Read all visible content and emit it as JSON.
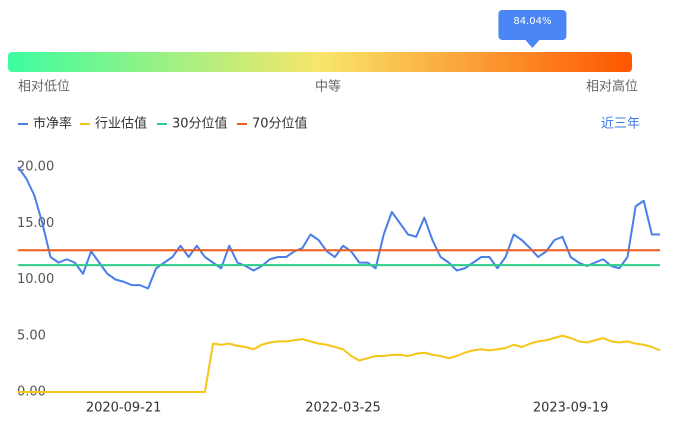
{
  "chart_data": {
    "type": "line",
    "percentile": 84.04,
    "percentile_label": "84.04%",
    "scale_labels": [
      "相对低位",
      "中等",
      "相对高位"
    ],
    "range_option": "近三年",
    "categories": [
      null,
      null,
      null,
      null,
      null,
      null,
      null,
      null,
      null,
      null,
      null,
      null,
      null,
      "2020-09-21",
      null,
      null,
      null,
      null,
      null,
      null,
      null,
      null,
      null,
      null,
      null,
      null,
      null,
      null,
      null,
      null,
      null,
      null,
      null,
      null,
      null,
      null,
      null,
      null,
      null,
      null,
      "2022-03-25",
      null,
      null,
      null,
      null,
      null,
      null,
      null,
      null,
      null,
      null,
      null,
      null,
      null,
      null,
      null,
      null,
      null,
      null,
      null,
      null,
      null,
      null,
      null,
      null,
      null,
      null,
      null,
      "2023-09-19",
      null,
      null,
      null,
      null,
      null,
      null,
      null,
      null,
      null,
      null,
      null
    ],
    "series": [
      {
        "name": "市净率",
        "color": "#4a7ee8",
        "values": [
          20,
          19,
          17.5,
          15,
          12,
          11.5,
          11.8,
          11.5,
          10.5,
          12.5,
          11.5,
          10.5,
          10,
          9.8,
          9.5,
          9.5,
          9.2,
          11,
          11.5,
          12,
          13,
          12,
          13,
          12,
          11.5,
          11,
          13,
          11.5,
          11.2,
          10.8,
          11.2,
          11.8,
          12,
          12,
          12.5,
          12.8,
          14,
          13.5,
          12.5,
          12,
          13,
          12.5,
          11.5,
          11.5,
          11,
          14,
          16,
          15,
          14,
          13.8,
          15.5,
          13.5,
          12,
          11.5,
          10.8,
          11,
          11.5,
          12,
          12,
          11,
          12,
          14,
          13.5,
          12.8,
          12,
          12.5,
          13.5,
          13.8,
          12,
          11.5,
          11.2,
          11.5,
          11.8,
          11.2,
          11,
          12,
          16.5,
          17,
          14,
          14
        ]
      },
      {
        "name": "行业估值",
        "color": "#f5c518",
        "values": [
          0,
          0,
          0,
          0,
          0,
          0,
          0,
          0,
          0,
          0,
          0,
          0,
          0,
          0,
          0,
          0,
          0,
          0,
          0,
          0,
          0,
          0,
          0,
          0,
          4.3,
          4.2,
          4.3,
          4.1,
          4.0,
          3.8,
          4.2,
          4.4,
          4.5,
          4.5,
          4.6,
          4.7,
          4.5,
          4.3,
          4.2,
          4.0,
          3.8,
          3.2,
          2.8,
          3.0,
          3.2,
          3.2,
          3.3,
          3.3,
          3.2,
          3.4,
          3.5,
          3.3,
          3.2,
          3.0,
          3.2,
          3.5,
          3.7,
          3.8,
          3.7,
          3.8,
          3.9,
          4.2,
          4.0,
          4.3,
          4.5,
          4.6,
          4.8,
          5.0,
          4.8,
          4.5,
          4.4,
          4.6,
          4.8,
          4.5,
          4.4,
          4.5,
          4.3,
          4.2,
          4.0,
          3.7
        ]
      },
      {
        "name": "30分位值",
        "color": "#2ecc8a",
        "value": 11.28
      },
      {
        "name": "70分位值",
        "color": "#f05a1a",
        "value": 12.6
      }
    ],
    "ylim": [
      0,
      20
    ],
    "yticks": [
      {
        "value": 0,
        "label": "0.00"
      },
      {
        "value": 5,
        "label": "5.00"
      },
      {
        "value": 10,
        "label": "10.00"
      },
      {
        "value": 15,
        "label": "15.00"
      },
      {
        "value": 20,
        "label": "20.00"
      }
    ]
  }
}
